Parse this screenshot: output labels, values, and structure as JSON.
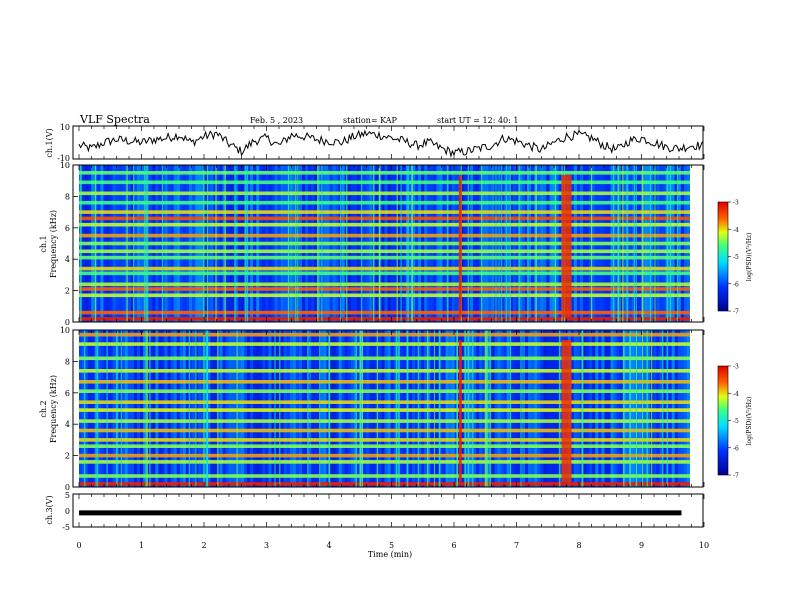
{
  "header": {
    "title": "VLF Spectra",
    "date": "Feb. 5 , 2023",
    "station": "station= KAP",
    "start_time": "start UT = 12: 40: 1"
  },
  "chart_data": [
    {
      "type": "line",
      "panel": "ch1-waveform",
      "ylabel": "ch.1(V)",
      "ylim": [
        -10,
        10
      ],
      "yticks": [
        "10",
        "-10"
      ],
      "x": [
        0,
        0.2,
        0.4,
        0.6,
        0.8,
        1.0,
        1.2,
        1.4,
        1.6,
        1.8,
        2.0,
        2.2,
        2.4,
        2.6,
        2.8,
        3.0,
        3.2,
        3.4,
        3.6,
        3.8,
        4.0,
        4.2,
        4.4,
        4.6,
        4.8,
        5.0,
        5.2,
        5.4,
        5.6,
        5.8,
        6.0,
        6.2,
        6.4,
        6.6,
        6.8,
        7.0,
        7.2,
        7.4,
        7.6,
        7.8,
        8.0,
        8.2,
        8.4,
        8.6,
        8.8,
        9.0,
        9.2,
        9.4,
        9.6,
        9.8
      ],
      "values": [
        -2,
        -4,
        0,
        2,
        1,
        0,
        2,
        3,
        5,
        0,
        4,
        6,
        -1,
        -6,
        1,
        3,
        -2,
        5,
        4,
        2,
        1,
        0,
        4,
        6,
        5,
        3,
        1,
        -2,
        0,
        -4,
        -7,
        -6,
        -4,
        -2,
        3,
        1,
        -2,
        -5,
        0,
        4,
        5,
        3,
        -2,
        -5,
        1,
        3,
        0,
        -3,
        -4,
        -2
      ]
    },
    {
      "type": "heatmap",
      "panel": "ch1-spectrogram",
      "ylabel": "ch.1\nFrequency (kHz)",
      "ylim": [
        0,
        10
      ],
      "yticks": [
        "0",
        "2",
        "4",
        "6",
        "8",
        "10"
      ],
      "colorbar": {
        "label": "log(PSD)(V²/Hz)",
        "range": [
          -7,
          -3
        ],
        "ticks": [
          "-3",
          "-4",
          "-5",
          "-6",
          "-7"
        ]
      },
      "bands_khz": [
        {
          "f": 0.2,
          "level": -3.2
        },
        {
          "f": 0.6,
          "level": -3.6
        },
        {
          "f": 1.7,
          "level": -4.2
        },
        {
          "f": 2.1,
          "level": -3.6
        },
        {
          "f": 2.4,
          "level": -4.3
        },
        {
          "f": 3.1,
          "level": -4.6
        },
        {
          "f": 3.4,
          "level": -4.0
        },
        {
          "f": 4.1,
          "level": -4.5
        },
        {
          "f": 4.5,
          "level": -4.3
        },
        {
          "f": 5.0,
          "level": -4.4
        },
        {
          "f": 5.5,
          "level": -3.8
        },
        {
          "f": 6.2,
          "level": -4.2
        },
        {
          "f": 6.6,
          "level": -3.5
        },
        {
          "f": 7.0,
          "level": -4.0
        },
        {
          "f": 7.6,
          "level": -4.6
        },
        {
          "f": 8.2,
          "level": -4.3
        },
        {
          "f": 8.9,
          "level": -4.6
        },
        {
          "f": 9.5,
          "level": -4.5
        }
      ],
      "events_min": [
        {
          "t": 6.1,
          "level": -3.2
        },
        {
          "t": 7.8,
          "level": -3.3
        }
      ]
    },
    {
      "type": "heatmap",
      "panel": "ch2-spectrogram",
      "ylabel": "ch.2\nFrequency (kHz)",
      "ylim": [
        0,
        10
      ],
      "yticks": [
        "0",
        "2",
        "4",
        "6",
        "8",
        "10"
      ],
      "colorbar": {
        "label": "log(PSD)(V²/Hz)",
        "range": [
          -7,
          -3
        ],
        "ticks": [
          "-3",
          "-4",
          "-5",
          "-6",
          "-7"
        ]
      },
      "bands_khz": [
        {
          "f": 0.2,
          "level": -3.2
        },
        {
          "f": 0.7,
          "level": -4.4
        },
        {
          "f": 1.6,
          "level": -4.3
        },
        {
          "f": 2.0,
          "level": -3.8
        },
        {
          "f": 2.6,
          "level": -4.4
        },
        {
          "f": 3.0,
          "level": -4.0
        },
        {
          "f": 3.6,
          "level": -3.9
        },
        {
          "f": 4.2,
          "level": -4.3
        },
        {
          "f": 4.9,
          "level": -4.1
        },
        {
          "f": 5.4,
          "level": -4.0
        },
        {
          "f": 6.1,
          "level": -4.4
        },
        {
          "f": 6.7,
          "level": -3.9
        },
        {
          "f": 7.4,
          "level": -4.2
        },
        {
          "f": 8.2,
          "level": -4.4
        },
        {
          "f": 9.1,
          "level": -4.2
        },
        {
          "f": 9.7,
          "level": -3.8
        }
      ],
      "events_min": [
        {
          "t": 6.1,
          "level": -3.2
        },
        {
          "t": 7.8,
          "level": -3.3
        }
      ]
    },
    {
      "type": "line",
      "panel": "ch3-waveform",
      "ylabel": "ch.3(V)",
      "ylim": [
        -5,
        5
      ],
      "yticks": [
        "5",
        "0",
        "-5"
      ],
      "x": [
        0,
        9.8
      ],
      "values": [
        -0.8,
        -0.8
      ]
    }
  ],
  "xaxis": {
    "label": "Time (min)",
    "range": [
      0,
      10
    ],
    "ticks": [
      "0",
      "1",
      "2",
      "3",
      "4",
      "5",
      "6",
      "7",
      "8",
      "9",
      "10"
    ]
  }
}
